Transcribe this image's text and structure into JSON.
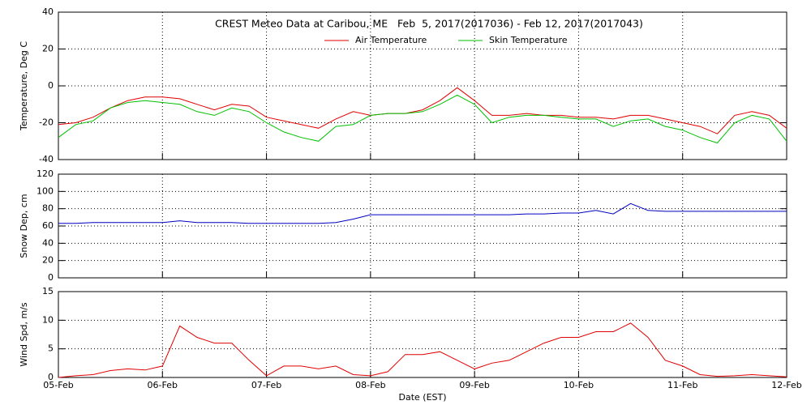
{
  "chart_data": [
    {
      "type": "line",
      "title": "CREST Meteo Data at Caribou, ME   Feb  5, 2017(2017036) - Feb 12, 2017(2017043)",
      "ylabel": "Temperature, Deg C",
      "x": [
        36,
        36.1667,
        36.3333,
        36.5,
        36.6667,
        36.8333,
        37,
        37.1667,
        37.3333,
        37.5,
        37.6667,
        37.8333,
        38,
        38.1667,
        38.3333,
        38.5,
        38.6667,
        38.8333,
        39,
        39.1667,
        39.3333,
        39.5,
        39.6667,
        39.8333,
        40,
        40.1667,
        40.3333,
        40.5,
        40.6667,
        40.8333,
        41,
        41.1667,
        41.3333,
        41.5,
        41.6667,
        41.8333,
        42,
        42.1667,
        42.3333,
        42.5,
        42.6667,
        42.8333,
        43
      ],
      "xlim": [
        36,
        43
      ],
      "xticks": [
        36,
        37,
        38,
        39,
        40,
        41,
        42,
        43
      ],
      "ylim": [
        -40,
        40
      ],
      "yticks": [
        -40,
        -20,
        0,
        20,
        40
      ],
      "grid": true,
      "legend": "top",
      "series": [
        {
          "name": "Air Temperature",
          "color": "#e00000",
          "values": [
            -21,
            -20,
            -17,
            -12,
            -8,
            -6,
            -6,
            -7,
            -10,
            -13,
            -10,
            -11,
            -17,
            -19,
            -21,
            -23,
            -18,
            -14,
            -16,
            -15,
            -15,
            -13,
            -8,
            -1,
            -8,
            -16,
            -16,
            -15,
            -16,
            -16,
            -17,
            -17,
            -18,
            -16,
            -16,
            -18,
            -20,
            -22,
            -26,
            -16,
            -14,
            -16,
            -23
          ]
        },
        {
          "name": "Skin Temperature",
          "color": "#00c000",
          "values": [
            -28,
            -21,
            -19,
            -12,
            -9,
            -8,
            -9,
            -10,
            -14,
            -16,
            -12,
            -14,
            -20,
            -25,
            -28,
            -30,
            -22,
            -21,
            -16,
            -15,
            -15,
            -14,
            -10,
            -5,
            -10,
            -20,
            -17,
            -16,
            -16,
            -17,
            -18,
            -18,
            -22,
            -19,
            -18,
            -22,
            -24,
            -28,
            -31,
            -20,
            -16,
            -18,
            -30
          ]
        }
      ]
    },
    {
      "type": "line",
      "ylabel": "Snow Dep, cm",
      "x": [
        36,
        36.1667,
        36.3333,
        36.5,
        36.6667,
        36.8333,
        37,
        37.1667,
        37.3333,
        37.5,
        37.6667,
        37.8333,
        38,
        38.1667,
        38.3333,
        38.5,
        38.6667,
        38.8333,
        39,
        39.1667,
        39.3333,
        39.5,
        39.6667,
        39.8333,
        40,
        40.1667,
        40.3333,
        40.5,
        40.6667,
        40.8333,
        41,
        41.1667,
        41.3333,
        41.5,
        41.6667,
        41.8333,
        42,
        42.1667,
        42.3333,
        42.5,
        42.6667,
        42.8333,
        43
      ],
      "xlim": [
        36,
        43
      ],
      "xticks": [
        36,
        37,
        38,
        39,
        40,
        41,
        42,
        43
      ],
      "ylim": [
        0,
        120
      ],
      "yticks": [
        0,
        20,
        40,
        60,
        80,
        100,
        120
      ],
      "grid": true,
      "series": [
        {
          "name": "Snow Depth",
          "color": "#0000c0",
          "values": [
            63,
            63,
            64,
            64,
            64,
            64,
            64,
            66,
            64,
            64,
            64,
            63,
            63,
            63,
            63,
            63,
            64,
            68,
            73,
            73,
            73,
            73,
            73,
            73,
            73,
            73,
            73,
            74,
            74,
            75,
            75,
            78,
            74,
            86,
            78,
            77,
            77,
            77,
            77,
            77,
            77,
            77,
            77
          ]
        }
      ]
    },
    {
      "type": "line",
      "ylabel": "Wind Spd, m/s",
      "xlabel": "Date (EST)",
      "x": [
        36,
        36.1667,
        36.3333,
        36.5,
        36.6667,
        36.8333,
        37,
        37.1667,
        37.3333,
        37.5,
        37.6667,
        37.8333,
        38,
        38.1667,
        38.3333,
        38.5,
        38.6667,
        38.8333,
        39,
        39.1667,
        39.3333,
        39.5,
        39.6667,
        39.8333,
        40,
        40.1667,
        40.3333,
        40.5,
        40.6667,
        40.8333,
        41,
        41.1667,
        41.3333,
        41.5,
        41.6667,
        41.8333,
        42,
        42.1667,
        42.3333,
        42.5,
        42.6667,
        42.8333,
        43
      ],
      "xlim": [
        36,
        43
      ],
      "xticks": [
        {
          "value": 36,
          "label": "05-Feb"
        },
        {
          "value": 37,
          "label": "06-Feb"
        },
        {
          "value": 38,
          "label": "07-Feb"
        },
        {
          "value": 39,
          "label": "08-Feb"
        },
        {
          "value": 40,
          "label": "09-Feb"
        },
        {
          "value": 41,
          "label": "10-Feb"
        },
        {
          "value": 42,
          "label": "11-Feb"
        },
        {
          "value": 43,
          "label": "12-Feb"
        }
      ],
      "ylim": [
        0,
        15
      ],
      "yticks": [
        0,
        5,
        10,
        15
      ],
      "grid": true,
      "series": [
        {
          "name": "Wind Speed",
          "color": "#e00000",
          "values": [
            0,
            0.3,
            0.5,
            1.2,
            1.5,
            1.3,
            2,
            9,
            7,
            6,
            6,
            3,
            0.3,
            2,
            2,
            1.5,
            2,
            0.5,
            0.3,
            1,
            4,
            4,
            4.5,
            3,
            1.5,
            2.5,
            3,
            4.5,
            6,
            7,
            7,
            8,
            8,
            9.5,
            7,
            3,
            2,
            0.5,
            0.2,
            0.3,
            0.5,
            0.3,
            0.1
          ]
        }
      ]
    }
  ]
}
